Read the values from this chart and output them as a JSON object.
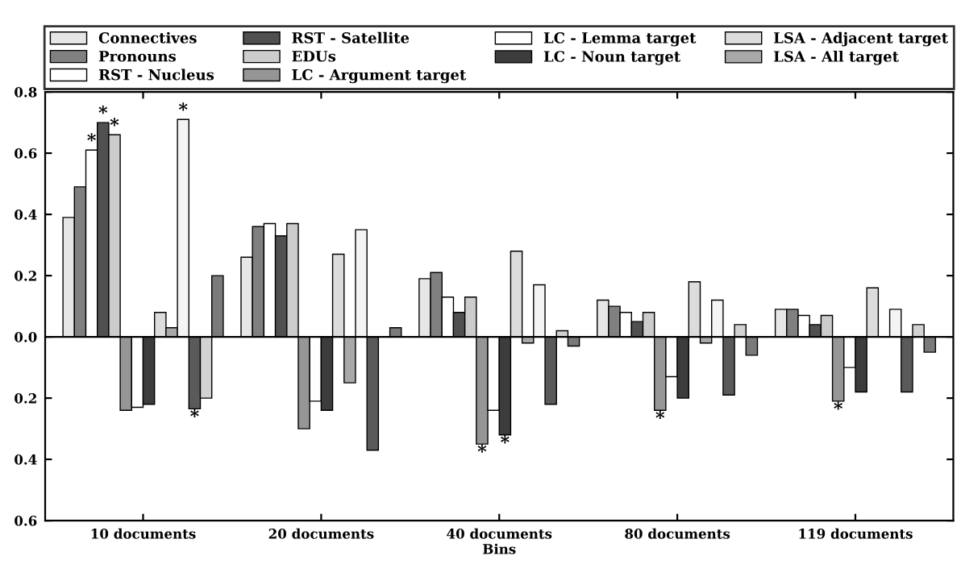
{
  "chart_data": {
    "type": "bar",
    "xlabel": "Bins",
    "categories": [
      "10 documents",
      "20 documents",
      "40 documents",
      "80 documents",
      "119 documents"
    ],
    "series": [
      {
        "name": "Connectives",
        "color": "#e6e6e6",
        "values": [
          0.39,
          0.26,
          0.19,
          0.12,
          0.09
        ]
      },
      {
        "name": "Pronouns",
        "color": "#808080",
        "values": [
          0.49,
          0.36,
          0.21,
          0.1,
          0.09
        ]
      },
      {
        "name": "RST - Nucleus",
        "color": "#ffffff",
        "values": [
          0.61,
          0.37,
          0.13,
          0.08,
          0.07
        ],
        "value_labels": [
          "*",
          null,
          null,
          null,
          null
        ]
      },
      {
        "name": "RST - Satellite",
        "color": "#505050",
        "values": [
          0.7,
          0.33,
          0.08,
          0.05,
          0.04
        ],
        "value_labels": [
          "*",
          null,
          null,
          null,
          null
        ]
      },
      {
        "name": "EDUs",
        "color": "#cccccc",
        "values": [
          0.66,
          0.37,
          0.13,
          0.08,
          0.07
        ],
        "value_labels": [
          "*",
          null,
          null,
          null,
          null
        ]
      },
      {
        "name": "LC - Argument target",
        "color": "#969696",
        "values": [
          -0.24,
          -0.3,
          -0.35,
          -0.24,
          -0.21
        ],
        "value_labels": [
          null,
          null,
          "*",
          "*",
          "*"
        ]
      },
      {
        "name": "LC - Lemma target",
        "color": "#ffffff",
        "values": [
          -0.23,
          -0.21,
          -0.24,
          -0.13,
          -0.1
        ]
      },
      {
        "name": "LC - Noun target",
        "color": "#3c3c3c",
        "values": [
          -0.22,
          -0.24,
          -0.32,
          -0.2,
          -0.18
        ],
        "value_labels": [
          null,
          null,
          "*",
          null,
          null
        ]
      },
      {
        "name": "LSA - Adjacent target",
        "color": "#dcdcdc",
        "values": [
          0.08,
          0.27,
          0.28,
          0.18,
          0.16
        ]
      },
      {
        "name": "LSA - All target",
        "color": "#a8a8a8",
        "values": [
          0.03,
          -0.15,
          -0.02,
          -0.02,
          null
        ]
      },
      {
        "color": "#f4f4f4",
        "values": [
          0.71,
          0.35,
          0.17,
          0.12,
          0.09
        ],
        "value_labels": [
          "*",
          null,
          null,
          null,
          null
        ]
      },
      {
        "color": "#5a5a5a",
        "values": [
          -0.235,
          -0.37,
          -0.22,
          -0.19,
          -0.18
        ],
        "value_labels": [
          "*",
          null,
          null,
          null,
          null
        ]
      },
      {
        "color": "#d2d2d2",
        "values": [
          -0.2,
          null,
          0.02,
          0.04,
          0.04
        ]
      },
      {
        "color": "#7a7a7a",
        "values": [
          0.2,
          0.03,
          -0.03,
          -0.06,
          -0.05
        ]
      }
    ],
    "ylim": [
      -0.6,
      0.8
    ],
    "yticks": [
      {
        "value": -0.6,
        "label": "0.6"
      },
      {
        "value": -0.4,
        "label": "0.4"
      },
      {
        "value": -0.2,
        "label": "0.2"
      },
      {
        "value": 0,
        "label": "0.0"
      },
      0.2,
      0.4,
      0.6,
      0.8
    ],
    "legend": "top"
  }
}
